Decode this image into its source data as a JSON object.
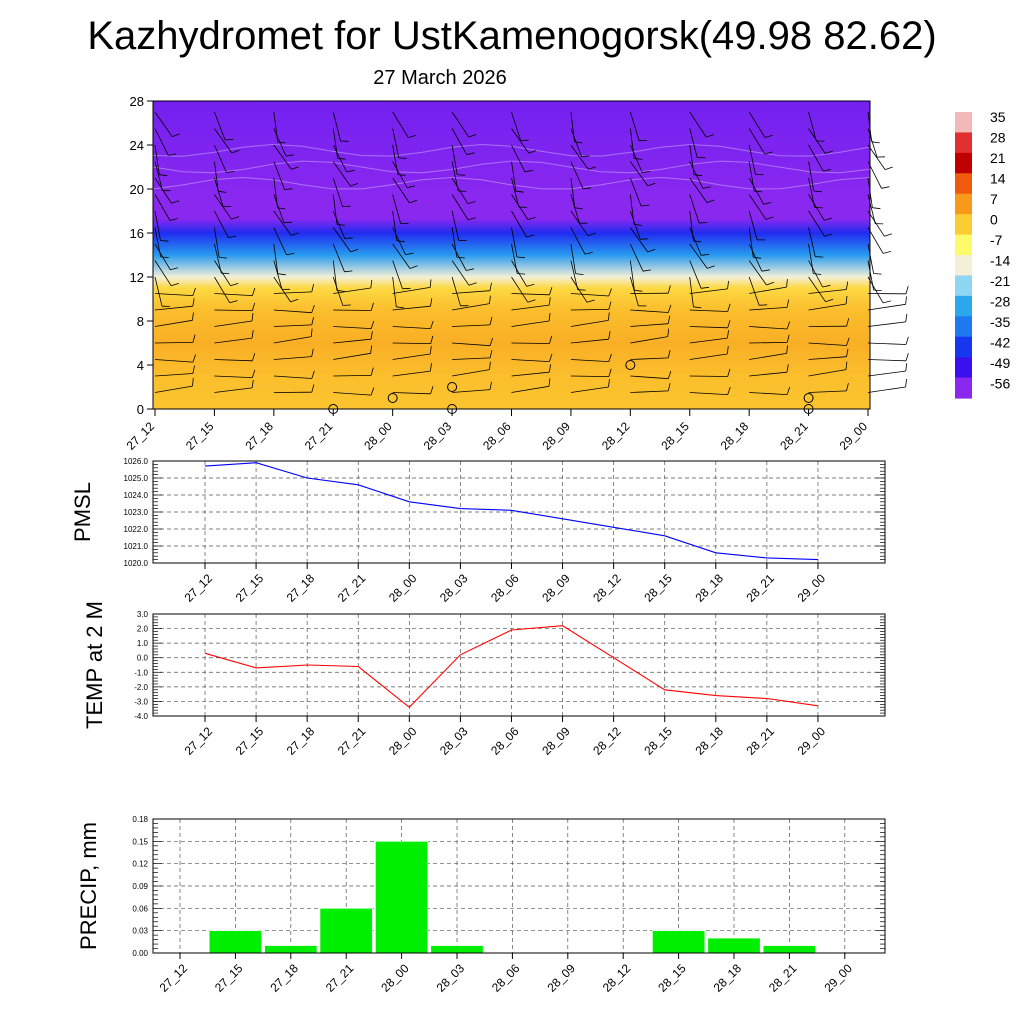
{
  "title": "Kazhydromet for UstKamenogorsk(49.98 82.62)",
  "subtitle": "27 March 2026",
  "times": [
    "27_12",
    "27_15",
    "27_18",
    "27_21",
    "28_00",
    "28_03",
    "28_06",
    "28_09",
    "28_12",
    "28_15",
    "28_18",
    "28_21",
    "29_00"
  ],
  "colorbar": {
    "labels": [
      "35",
      "28",
      "21",
      "14",
      "7",
      "0",
      "-7",
      "-14",
      "-21",
      "-28",
      "-35",
      "-42",
      "-49",
      "-56"
    ],
    "stops": [
      "#f4b8b8",
      "#e03030",
      "#c00000",
      "#f05a0a",
      "#f79a1a",
      "#fccc33",
      "#fffa6a",
      "#f4f0d8",
      "#8fd6f2",
      "#2aa8ee",
      "#1e78f0",
      "#1637ee",
      "#3a10f0",
      "#8a28f0"
    ]
  },
  "chart_data": [
    {
      "type": "heatmap",
      "title": "",
      "xlabel": "",
      "ylabel": "",
      "x": [
        "27_12",
        "27_15",
        "27_18",
        "27_21",
        "28_00",
        "28_03",
        "28_06",
        "28_09",
        "28_12",
        "28_15",
        "28_18",
        "28_21",
        "29_00"
      ],
      "yticks": [
        "0",
        "4",
        "8",
        "12",
        "16",
        "20",
        "24",
        "28"
      ],
      "ylim": [
        0,
        28
      ],
      "value_range": [
        -56,
        35
      ],
      "vertical_profile": [
        {
          "level": 0,
          "value": 1
        },
        {
          "level": 3,
          "value": 2
        },
        {
          "level": 6,
          "value": 4
        },
        {
          "level": 9,
          "value": 2
        },
        {
          "level": 11,
          "value": -2
        },
        {
          "level": 12,
          "value": -14
        },
        {
          "level": 14,
          "value": -30
        },
        {
          "level": 16,
          "value": -44
        },
        {
          "level": 17.3,
          "value": -60
        },
        {
          "level": 19,
          "value": -56
        },
        {
          "level": 28,
          "value": -54
        }
      ],
      "overlay": "wind barbs",
      "markers": [
        {
          "time": "27_21",
          "level": 0
        },
        {
          "time": "28_00",
          "level": 1
        },
        {
          "time": "28_03",
          "level": 2
        },
        {
          "time": "28_03",
          "level": 0
        },
        {
          "time": "28_12",
          "level": 4
        },
        {
          "time": "28_21",
          "level": 1
        },
        {
          "time": "28_21",
          "level": 0
        }
      ]
    },
    {
      "type": "line",
      "ylabel": "PMSL",
      "x": [
        "27_12",
        "27_15",
        "27_18",
        "27_21",
        "28_00",
        "28_03",
        "28_06",
        "28_09",
        "28_12",
        "28_15",
        "28_18",
        "28_21",
        "29_00"
      ],
      "series": [
        {
          "color": "#0000ff",
          "values": [
            1025.7,
            1025.9,
            1025.0,
            1024.6,
            1023.6,
            1023.2,
            1023.1,
            1022.6,
            1022.1,
            1021.6,
            1020.6,
            1020.3,
            1020.2
          ]
        }
      ],
      "ylim": [
        1020.0,
        1026.0
      ],
      "yticks": [
        "1020.0",
        "1021.0",
        "1022.0",
        "1023.0",
        "1024.0",
        "1025.0",
        "1026.0"
      ],
      "grid": true
    },
    {
      "type": "line",
      "ylabel": "TEMP at 2 M",
      "x": [
        "27_12",
        "27_15",
        "27_18",
        "27_21",
        "28_00",
        "28_03",
        "28_06",
        "28_09",
        "28_12",
        "28_15",
        "28_18",
        "28_21",
        "29_00"
      ],
      "series": [
        {
          "color": "#ff0000",
          "values": [
            0.3,
            -0.7,
            -0.5,
            -0.6,
            -3.4,
            0.2,
            1.9,
            2.2,
            0.0,
            -2.2,
            -2.6,
            -2.8,
            -3.3
          ]
        }
      ],
      "ylim": [
        -4.0,
        3.0
      ],
      "yticks": [
        "-4.0",
        "-3.0",
        "-2.0",
        "-1.0",
        "0.0",
        "1.0",
        "2.0",
        "3.0"
      ],
      "grid": true
    },
    {
      "type": "bar",
      "ylabel": "PRECIP, mm",
      "x": [
        "27_12",
        "27_15",
        "27_18",
        "27_21",
        "28_00",
        "28_03",
        "28_06",
        "28_09",
        "28_12",
        "28_15",
        "28_18",
        "28_21",
        "29_00"
      ],
      "series": [
        {
          "color": "#00ee00",
          "values": [
            0,
            0.03,
            0.01,
            0.06,
            0.15,
            0.01,
            0,
            0,
            0,
            0.03,
            0.02,
            0.01,
            0
          ]
        }
      ],
      "ylim": [
        0,
        0.18
      ],
      "yticks": [
        "0.00",
        "0.03",
        "0.06",
        "0.09",
        "0.12",
        "0.15",
        "0.18"
      ],
      "grid": true
    }
  ]
}
